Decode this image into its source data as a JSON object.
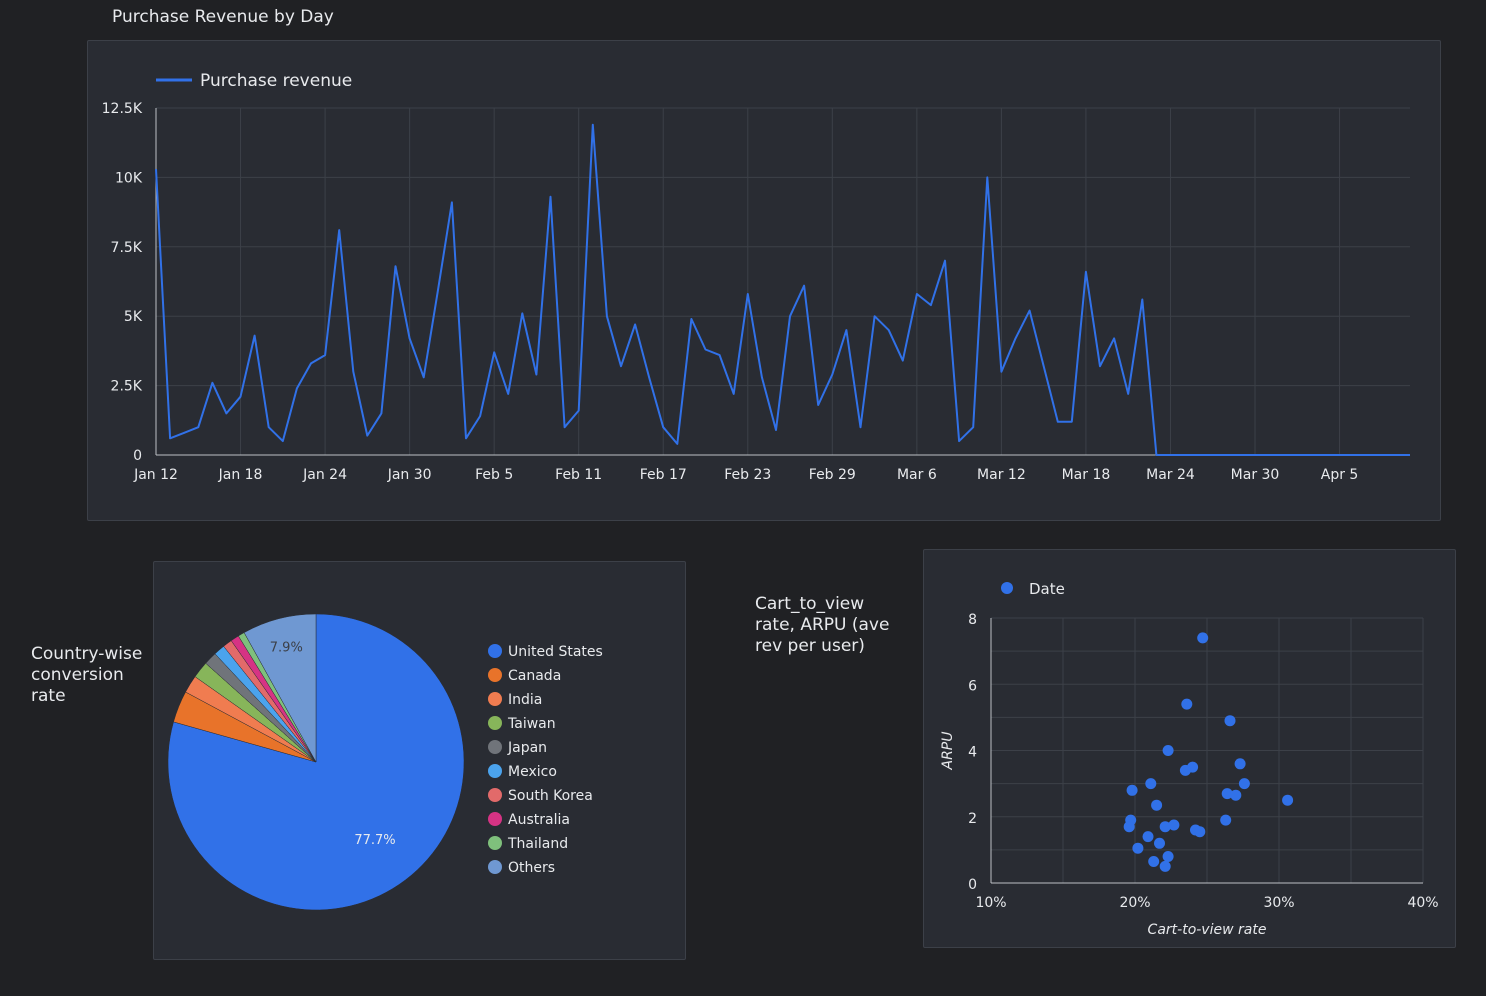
{
  "colors": {
    "accent": "#3171e8",
    "grid": "#3c4048",
    "axis": "#9aa0a6",
    "text": "#e8eaed"
  },
  "line_panel": {
    "title": "Purchase Revenue by Day"
  },
  "pie_panel": {
    "title_lines": [
      "Country-wise",
      "conversion",
      "rate"
    ]
  },
  "scatter_panel": {
    "title_lines": [
      "Cart_to_view",
      "rate, ARPU (ave",
      "rev per user)"
    ]
  },
  "chart_data": [
    {
      "type": "line",
      "title": "Purchase Revenue by Day",
      "series_name": "Purchase revenue",
      "ylim": [
        0,
        12500
      ],
      "y_ticks": [
        0,
        2500,
        5000,
        7500,
        10000,
        12500
      ],
      "y_tick_labels": [
        "0",
        "2.5K",
        "5K",
        "7.5K",
        "10K",
        "12.5K"
      ],
      "x_ticks": [
        0,
        6,
        12,
        18,
        24,
        30,
        36,
        42,
        48,
        54,
        60,
        66,
        72,
        78,
        84
      ],
      "x_tick_labels": [
        "Jan 12",
        "Jan 18",
        "Jan 24",
        "Jan 30",
        "Feb 5",
        "Feb 11",
        "Feb 17",
        "Feb 23",
        "Feb 29",
        "Mar 6",
        "Mar 12",
        "Mar 18",
        "Mar 24",
        "Mar 30",
        "Apr 5"
      ],
      "x_max": 89,
      "values": [
        10300,
        600,
        800,
        1000,
        2600,
        1500,
        2100,
        4300,
        1000,
        500,
        2400,
        3300,
        3600,
        8100,
        3000,
        700,
        1500,
        6800,
        4200,
        2800,
        5900,
        9100,
        600,
        1400,
        3700,
        2200,
        5100,
        2900,
        9300,
        1000,
        1600,
        11900,
        5000,
        3200,
        4700,
        2800,
        1000,
        400,
        4900,
        3800,
        3600,
        2200,
        5800,
        2800,
        900,
        5000,
        6100,
        1800,
        2900,
        4500,
        1000,
        5000,
        4500,
        3400,
        5800,
        5400,
        7000,
        500,
        1000,
        10000,
        3000,
        4200,
        5200,
        3200,
        1200,
        1200,
        6600,
        3200,
        4200,
        2200,
        5600,
        0,
        0,
        0,
        0,
        0,
        0,
        0,
        0,
        0,
        0,
        0,
        0,
        0,
        0,
        0,
        0,
        0,
        0,
        0
      ]
    },
    {
      "type": "pie",
      "title": "Country-wise conversion rate",
      "slices": [
        {
          "name": "United States",
          "value": 77.7,
          "color": "#3171e8",
          "label": "77.7%"
        },
        {
          "name": "Canada",
          "value": 3.4,
          "color": "#e8732a",
          "label": ""
        },
        {
          "name": "India",
          "value": 1.9,
          "color": "#f07c50",
          "label": ""
        },
        {
          "name": "Taiwan",
          "value": 1.8,
          "color": "#87b55a",
          "label": ""
        },
        {
          "name": "Japan",
          "value": 1.4,
          "color": "#70747a",
          "label": ""
        },
        {
          "name": "Mexico",
          "value": 1.2,
          "color": "#4ba3ed",
          "label": ""
        },
        {
          "name": "South Korea",
          "value": 1.0,
          "color": "#e26a6a",
          "label": ""
        },
        {
          "name": "Australia",
          "value": 0.9,
          "color": "#d63384",
          "label": ""
        },
        {
          "name": "Thailand",
          "value": 0.7,
          "color": "#7fc07c",
          "label": ""
        },
        {
          "name": "Others",
          "value": 7.9,
          "color": "#6f98d2",
          "label": "7.9%"
        }
      ]
    },
    {
      "type": "scatter",
      "title": "Cart_to_view rate, ARPU (ave rev per user)",
      "series_name": "Date",
      "xlabel": "Cart-to-view rate",
      "ylabel": "ARPU",
      "xlim": [
        10,
        40
      ],
      "ylim": [
        0,
        8
      ],
      "x_ticks": [
        10,
        20,
        30,
        40
      ],
      "x_tick_labels": [
        "10%",
        "20%",
        "30%",
        "40%"
      ],
      "y_ticks": [
        0,
        2,
        4,
        6,
        8
      ],
      "y_tick_labels": [
        "0",
        "2",
        "4",
        "6",
        "8"
      ],
      "points": [
        [
          24.7,
          7.4
        ],
        [
          23.6,
          5.4
        ],
        [
          26.6,
          4.9
        ],
        [
          22.3,
          4.0
        ],
        [
          27.3,
          3.6
        ],
        [
          24.0,
          3.5
        ],
        [
          23.5,
          3.4
        ],
        [
          21.1,
          3.0
        ],
        [
          27.6,
          3.0
        ],
        [
          19.8,
          2.8
        ],
        [
          26.4,
          2.7
        ],
        [
          27.0,
          2.65
        ],
        [
          30.6,
          2.5
        ],
        [
          21.5,
          2.35
        ],
        [
          19.7,
          1.9
        ],
        [
          26.3,
          1.9
        ],
        [
          19.6,
          1.7
        ],
        [
          22.7,
          1.75
        ],
        [
          22.1,
          1.7
        ],
        [
          24.2,
          1.6
        ],
        [
          24.5,
          1.55
        ],
        [
          20.9,
          1.4
        ],
        [
          21.7,
          1.2
        ],
        [
          20.2,
          1.05
        ],
        [
          22.3,
          0.8
        ],
        [
          21.3,
          0.65
        ],
        [
          22.1,
          0.5
        ]
      ]
    }
  ]
}
